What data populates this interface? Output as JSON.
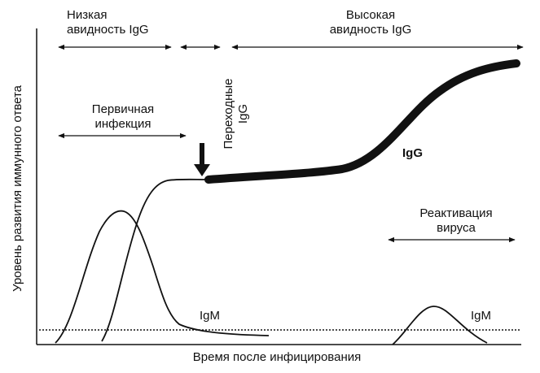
{
  "labels": {
    "low_avidity": [
      "Низкая",
      "авидность IgG"
    ],
    "high_avidity": [
      "Высокая",
      "авидность IgG"
    ],
    "primary_infection": [
      "Первичная",
      "инфекция"
    ],
    "transitional": [
      "Переходные",
      "IgG"
    ],
    "igg_curve": "IgG",
    "reactivation": [
      "Реактивация",
      "вируса"
    ],
    "igm_primary": "IgM",
    "igm_reactivation": "IgM"
  },
  "axes": {
    "x_label": "Время после инфицирования",
    "y_label": "Уровень развития иммунного ответа"
  },
  "colors": {
    "ink": "#111111",
    "background": "#ffffff"
  }
}
